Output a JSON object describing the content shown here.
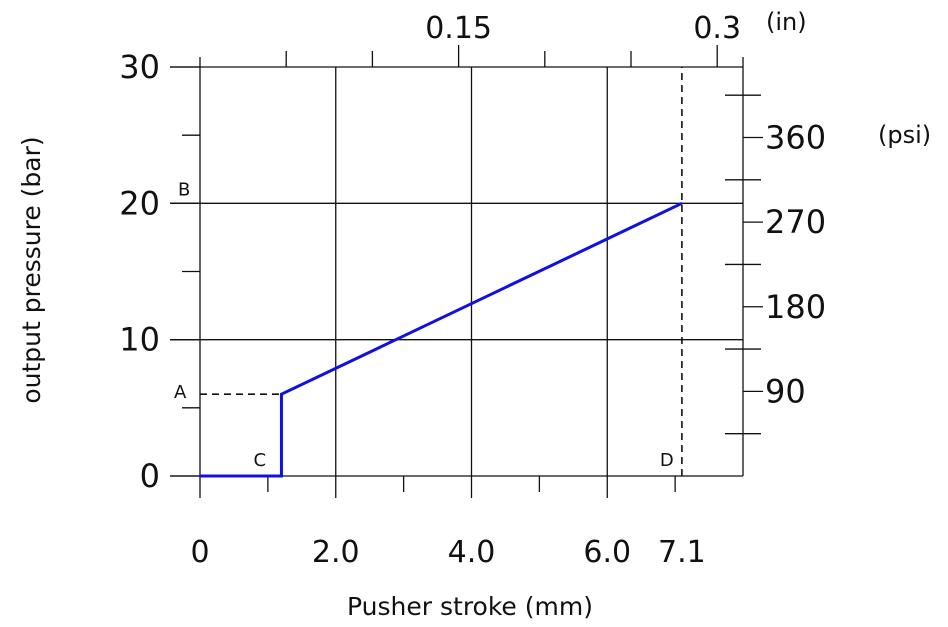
{
  "chart_data": {
    "type": "line",
    "xlabel": "Pusher stroke (mm)",
    "ylabel": "output pressure (bar)",
    "xlim": [
      0,
      8
    ],
    "ylim": [
      0,
      30
    ],
    "grid": true,
    "x_ticks": [
      0,
      2.0,
      4.0,
      6.0,
      7.1
    ],
    "x_tick_labels": [
      "0",
      "2.0",
      "4.0",
      "6.0",
      "7.1"
    ],
    "y_ticks": [
      0,
      10,
      20,
      30
    ],
    "y_tick_labels": [
      "0",
      "10",
      "20",
      "30"
    ],
    "secondary_x": {
      "unit": "(in)",
      "ticks": [
        0.15,
        0.3
      ],
      "tick_labels": [
        "0.15",
        "0.3"
      ]
    },
    "secondary_y": {
      "unit": "(psi)",
      "ticks": [
        90,
        180,
        270,
        360
      ],
      "tick_labels": [
        "90",
        "180",
        "270",
        "360"
      ]
    },
    "series": [
      {
        "x": [
          0,
          1.2,
          1.2,
          7.1
        ],
        "y": [
          0,
          0,
          6,
          20
        ],
        "color": "#1010e0"
      }
    ],
    "reference_lines": [
      {
        "x": [
          0,
          1.2
        ],
        "y": [
          6,
          6
        ],
        "style": "dashed"
      },
      {
        "x": [
          7.1,
          7.1
        ],
        "y": [
          0,
          30
        ],
        "style": "dashed"
      }
    ],
    "annotations": [
      {
        "text": "A",
        "x": 0,
        "y": 6
      },
      {
        "text": "B",
        "x": 0,
        "y": 20
      },
      {
        "text": "C",
        "x": 1.2,
        "y": 0
      },
      {
        "text": "D",
        "x": 7.1,
        "y": 0
      }
    ]
  }
}
